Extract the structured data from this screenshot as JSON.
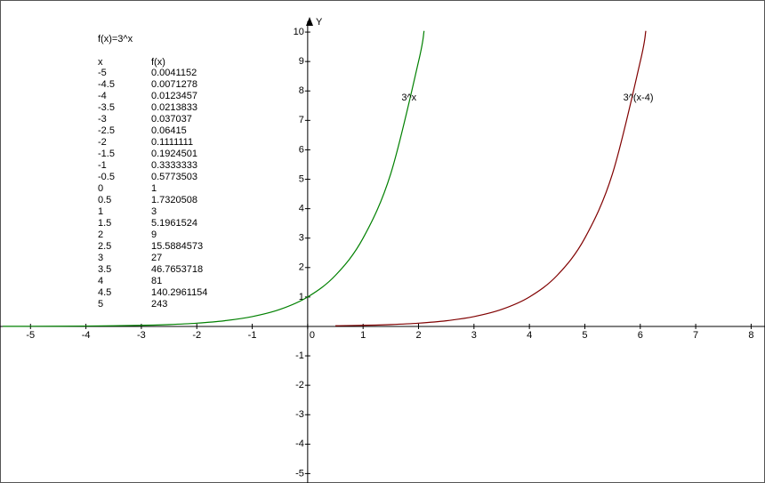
{
  "chart_data": {
    "type": "line",
    "xlim": [
      -5.55,
      8.25
    ],
    "ylim": [
      -5.32,
      11.09
    ],
    "xticks": [
      -5,
      -4,
      -3,
      -2,
      -1,
      0,
      1,
      2,
      3,
      4,
      5,
      6,
      7,
      8
    ],
    "yticks": [
      -5,
      -4,
      -3,
      -2,
      -1,
      1,
      2,
      3,
      4,
      5,
      6,
      7,
      8,
      9,
      10
    ],
    "y_label": "Y",
    "series": [
      {
        "name": "3^x",
        "color": "#008000",
        "x": [
          -5.5,
          -5,
          -4.5,
          -4,
          -3.5,
          -3,
          -2.5,
          -2,
          -1.5,
          -1,
          -0.5,
          0,
          0.5,
          1,
          1.5,
          2,
          2.1
        ],
        "values": [
          0.0024,
          0.0041,
          0.0071,
          0.0123,
          0.0214,
          0.037,
          0.0642,
          0.1111,
          0.1925,
          0.3333,
          0.5774,
          1,
          1.7321,
          3,
          5.1962,
          9,
          10.04
        ]
      },
      {
        "name": "3^(x-4)",
        "color": "#800000",
        "x": [
          0.5,
          1,
          1.5,
          2,
          2.5,
          3,
          3.5,
          4,
          4.5,
          5,
          5.5,
          6,
          6.1
        ],
        "values": [
          0.0214,
          0.037,
          0.0642,
          0.1111,
          0.1925,
          0.3333,
          0.5774,
          1,
          1.7321,
          3,
          5.1962,
          9,
          10.04
        ]
      }
    ],
    "table": {
      "title": "f(x)=3^x",
      "header": [
        "x",
        "f(x)"
      ],
      "rows": [
        [
          "-5",
          "0.0041152"
        ],
        [
          "-4.5",
          "0.0071278"
        ],
        [
          "-4",
          "0.0123457"
        ],
        [
          "-3.5",
          "0.0213833"
        ],
        [
          "-3",
          "0.037037"
        ],
        [
          "-2.5",
          "0.06415"
        ],
        [
          "-2",
          "0.1111111"
        ],
        [
          "-1.5",
          "0.1924501"
        ],
        [
          "-1",
          "0.3333333"
        ],
        [
          "-0.5",
          "0.5773503"
        ],
        [
          "0",
          "1"
        ],
        [
          "0.5",
          "1.7320508"
        ],
        [
          "1",
          "3"
        ],
        [
          "1.5",
          "5.1961524"
        ],
        [
          "2",
          "9"
        ],
        [
          "2.5",
          "15.5884573"
        ],
        [
          "3",
          "27"
        ],
        [
          "3.5",
          "46.7653718"
        ],
        [
          "4",
          "81"
        ],
        [
          "4.5",
          "140.2961154"
        ],
        [
          "5",
          "243"
        ]
      ]
    }
  }
}
